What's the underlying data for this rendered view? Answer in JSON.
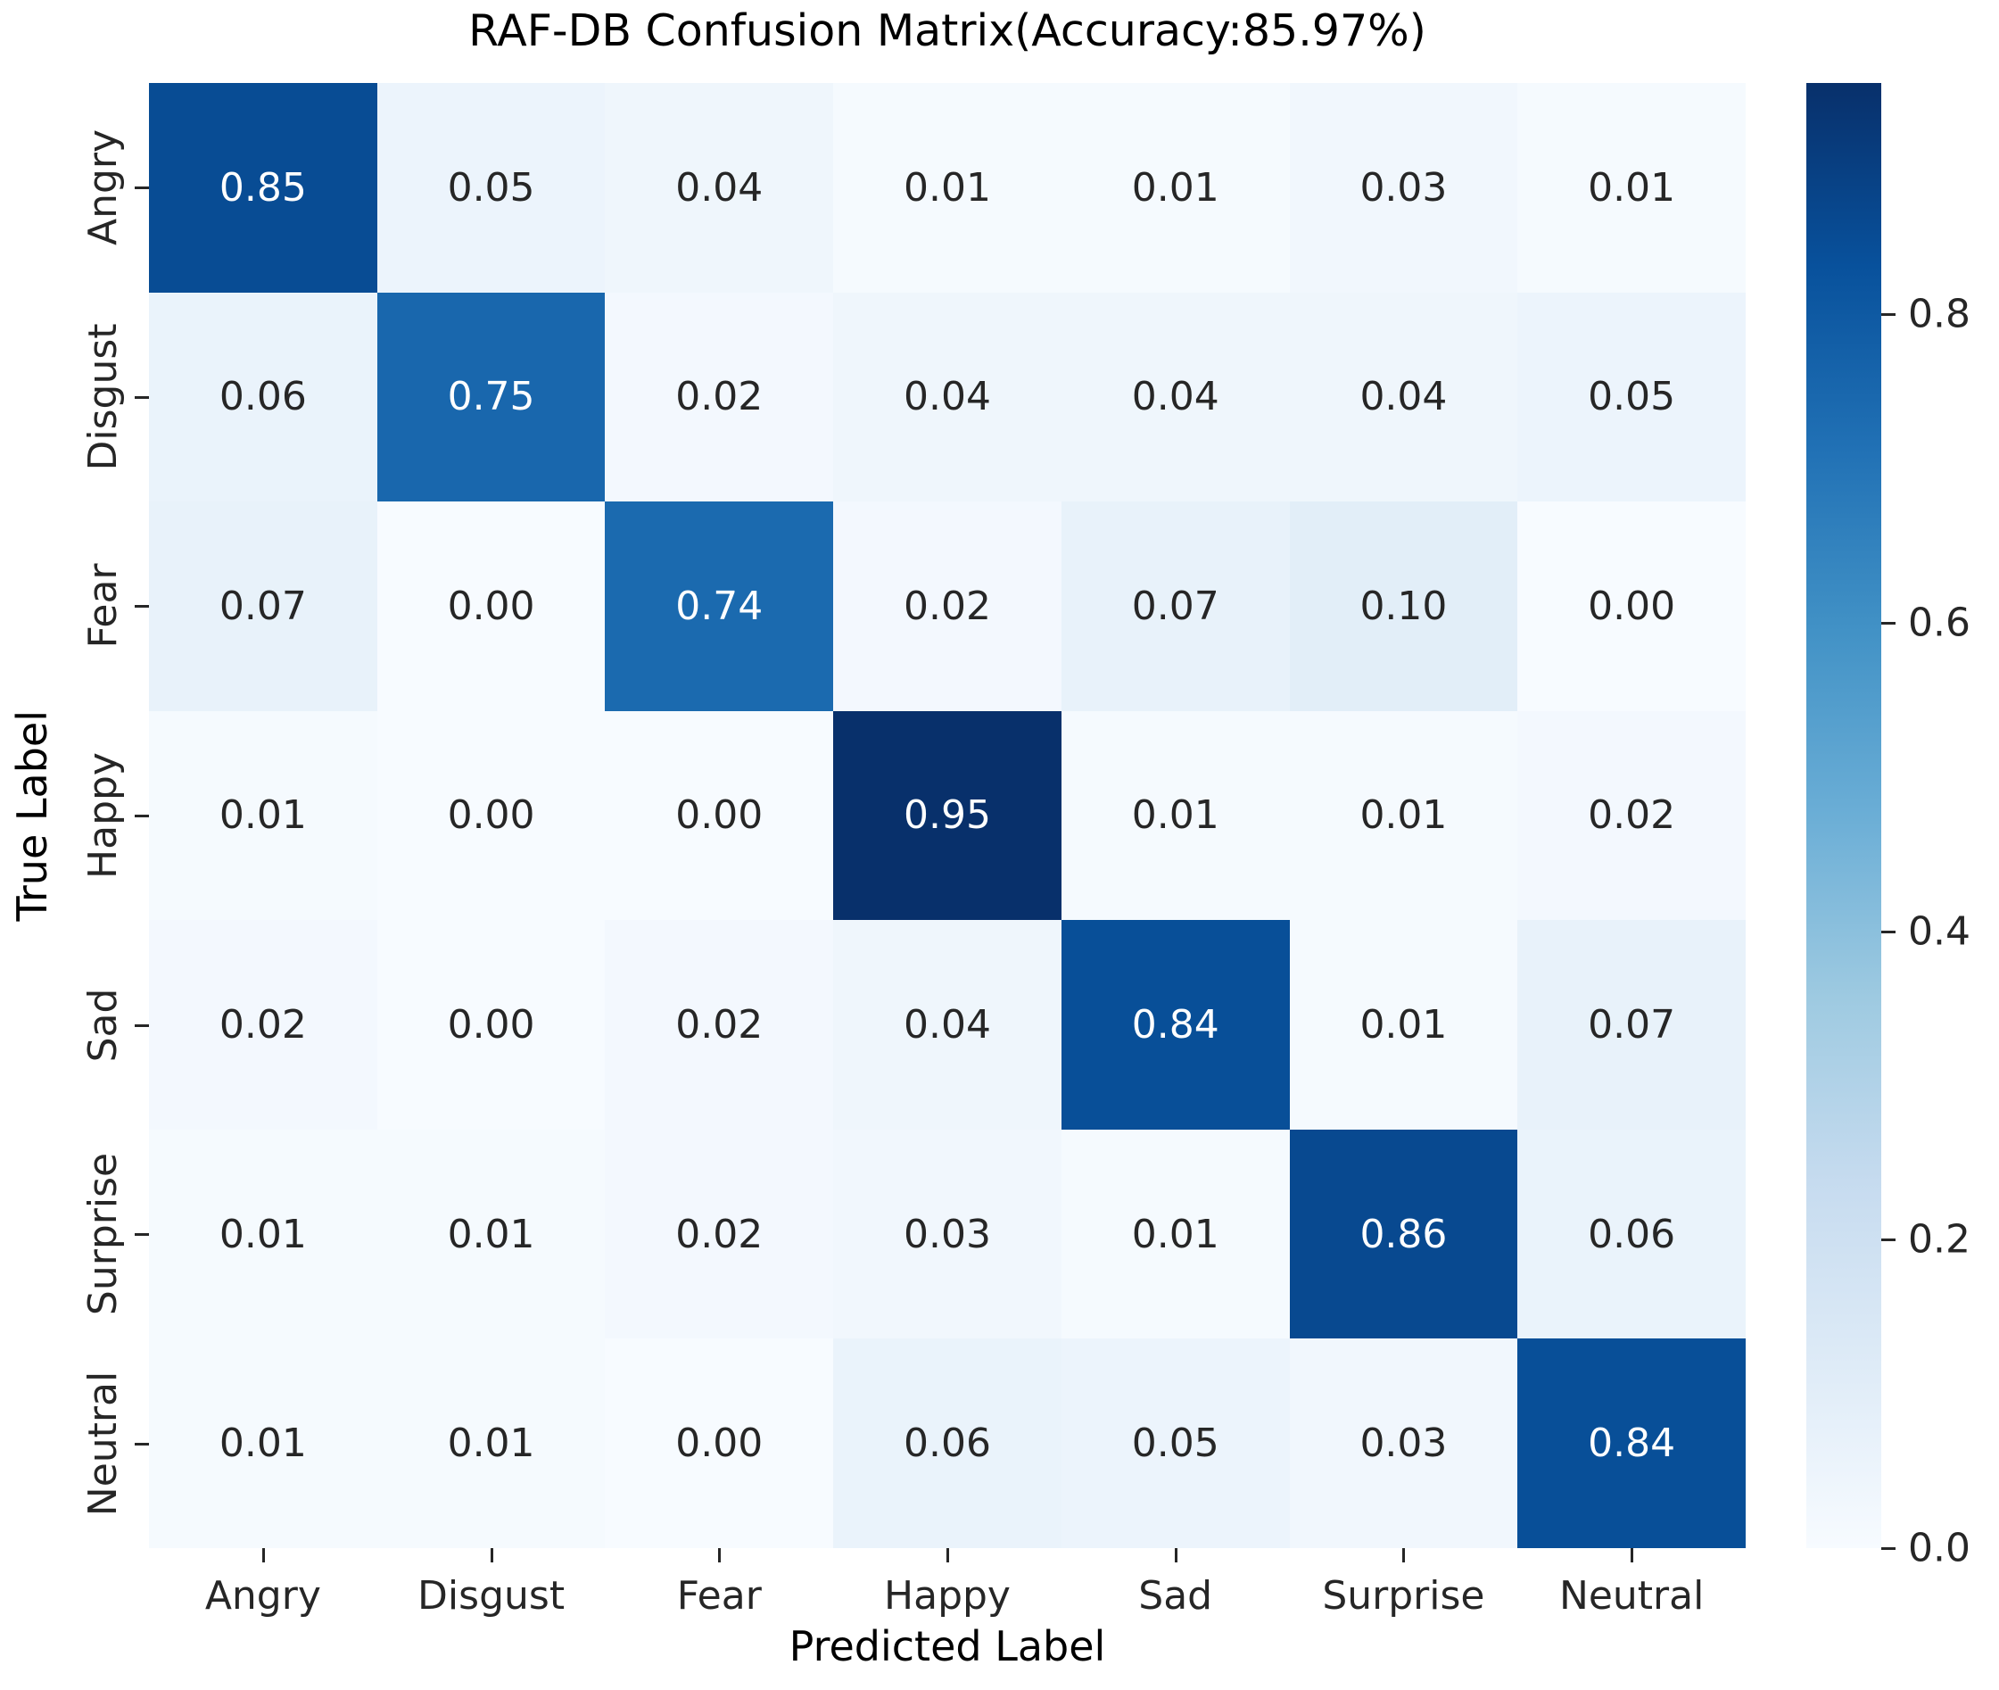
{
  "chart_data": {
    "type": "heatmap",
    "title": "RAF-DB Confusion Matrix(Accuracy:85.97%)",
    "xlabel": "Predicted Label",
    "ylabel": "True Label",
    "x_categories": [
      "Angry",
      "Disgust",
      "Fear",
      "Happy",
      "Sad",
      "Surprise",
      "Neutral"
    ],
    "y_categories": [
      "Angry",
      "Disgust",
      "Fear",
      "Happy",
      "Sad",
      "Surprise",
      "Neutral"
    ],
    "matrix": [
      [
        0.85,
        0.05,
        0.04,
        0.01,
        0.01,
        0.03,
        0.01
      ],
      [
        0.06,
        0.75,
        0.02,
        0.04,
        0.04,
        0.04,
        0.05
      ],
      [
        0.07,
        0.0,
        0.74,
        0.02,
        0.07,
        0.1,
        0.0
      ],
      [
        0.01,
        0.0,
        0.0,
        0.95,
        0.01,
        0.01,
        0.02
      ],
      [
        0.02,
        0.0,
        0.02,
        0.04,
        0.84,
        0.01,
        0.07
      ],
      [
        0.01,
        0.01,
        0.02,
        0.03,
        0.01,
        0.86,
        0.06
      ],
      [
        0.01,
        0.01,
        0.0,
        0.06,
        0.05,
        0.03,
        0.84
      ]
    ],
    "vmin": 0.0,
    "vmax": 0.95,
    "colormap": "Blues",
    "colormap_stops": [
      "#f7fbff",
      "#deebf7",
      "#c6dbef",
      "#9ecae1",
      "#6baed6",
      "#4292c6",
      "#2171b5",
      "#08519c",
      "#08306b"
    ],
    "colorbar_ticks": [
      {
        "label": "0.8",
        "value": 0.8
      },
      {
        "label": "0.6",
        "value": 0.6
      },
      {
        "label": "0.4",
        "value": 0.4
      },
      {
        "label": "0.2",
        "value": 0.2
      },
      {
        "label": "0.0",
        "value": 0.0
      }
    ],
    "annotation_colors": {
      "dark_text": "#262626",
      "light_text": "#ffffff"
    },
    "grid": false,
    "legend_position": "right-colorbar"
  }
}
